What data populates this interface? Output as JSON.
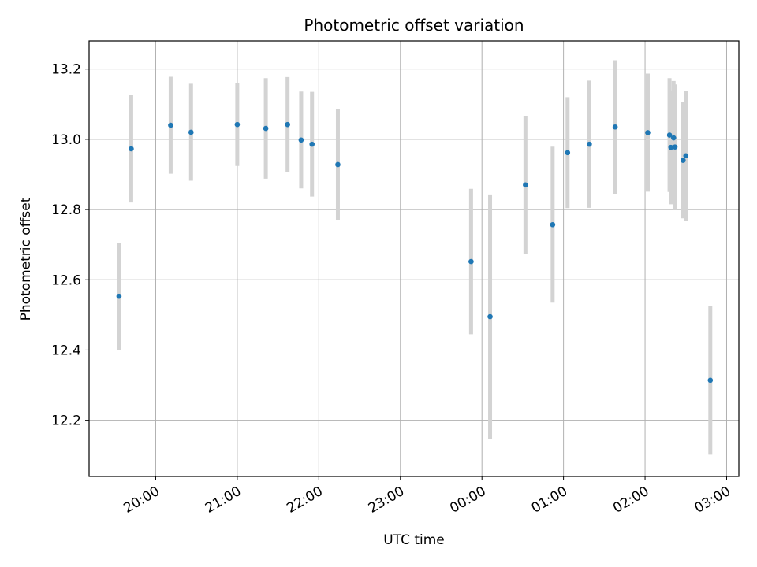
{
  "chart_data": {
    "type": "scatter",
    "title": "Photometric offset variation",
    "xlabel": "UTC time",
    "ylabel": "Photometric offset",
    "x_axis_type": "time",
    "xlim": [
      "19:11",
      "03:09"
    ],
    "ylim": [
      12.04,
      13.28
    ],
    "x_ticks": [
      "20:00",
      "21:00",
      "22:00",
      "23:00",
      "00:00",
      "01:00",
      "02:00",
      "03:00"
    ],
    "y_ticks": [
      12.2,
      12.4,
      12.6,
      12.8,
      13.0,
      13.2
    ],
    "y_tick_labels": [
      "12.2",
      "12.4",
      "12.6",
      "12.8",
      "13.0",
      "13.2"
    ],
    "grid": true,
    "point_color": "#1f77b4",
    "errorbar_color": "#d3d3d3",
    "series": [
      {
        "points": [
          {
            "x": "19:33",
            "y": 12.553,
            "err": 0.153
          },
          {
            "x": "19:42",
            "y": 12.973,
            "err": 0.153
          },
          {
            "x": "20:11",
            "y": 13.04,
            "err": 0.138
          },
          {
            "x": "20:26",
            "y": 13.02,
            "err": 0.138
          },
          {
            "x": "21:00",
            "y": 13.042,
            "err": 0.118
          },
          {
            "x": "21:21",
            "y": 13.031,
            "err": 0.143
          },
          {
            "x": "21:37",
            "y": 13.042,
            "err": 0.135
          },
          {
            "x": "21:47",
            "y": 12.998,
            "err": 0.138
          },
          {
            "x": "21:55",
            "y": 12.986,
            "err": 0.149
          },
          {
            "x": "22:14",
            "y": 12.928,
            "err": 0.157
          },
          {
            "x": "23:52",
            "y": 12.652,
            "err": 0.207
          },
          {
            "x": "00:06",
            "y": 12.495,
            "err": 0.348
          },
          {
            "x": "00:32",
            "y": 12.87,
            "err": 0.197
          },
          {
            "x": "00:52",
            "y": 12.757,
            "err": 0.222
          },
          {
            "x": "01:03",
            "y": 12.962,
            "err": 0.158
          },
          {
            "x": "01:19",
            "y": 12.986,
            "err": 0.181
          },
          {
            "x": "01:38",
            "y": 13.035,
            "err": 0.19
          },
          {
            "x": "02:02",
            "y": 13.019,
            "err": 0.168
          },
          {
            "x": "02:18",
            "y": 13.012,
            "err": 0.162
          },
          {
            "x": "02:19",
            "y": 12.977,
            "err": 0.162
          },
          {
            "x": "02:21",
            "y": 13.004,
            "err": 0.162
          },
          {
            "x": "02:22",
            "y": 12.978,
            "err": 0.178
          },
          {
            "x": "02:28",
            "y": 12.94,
            "err": 0.165
          },
          {
            "x": "02:30",
            "y": 12.953,
            "err": 0.185
          },
          {
            "x": "02:48",
            "y": 12.314,
            "err": 0.212
          }
        ]
      }
    ]
  }
}
